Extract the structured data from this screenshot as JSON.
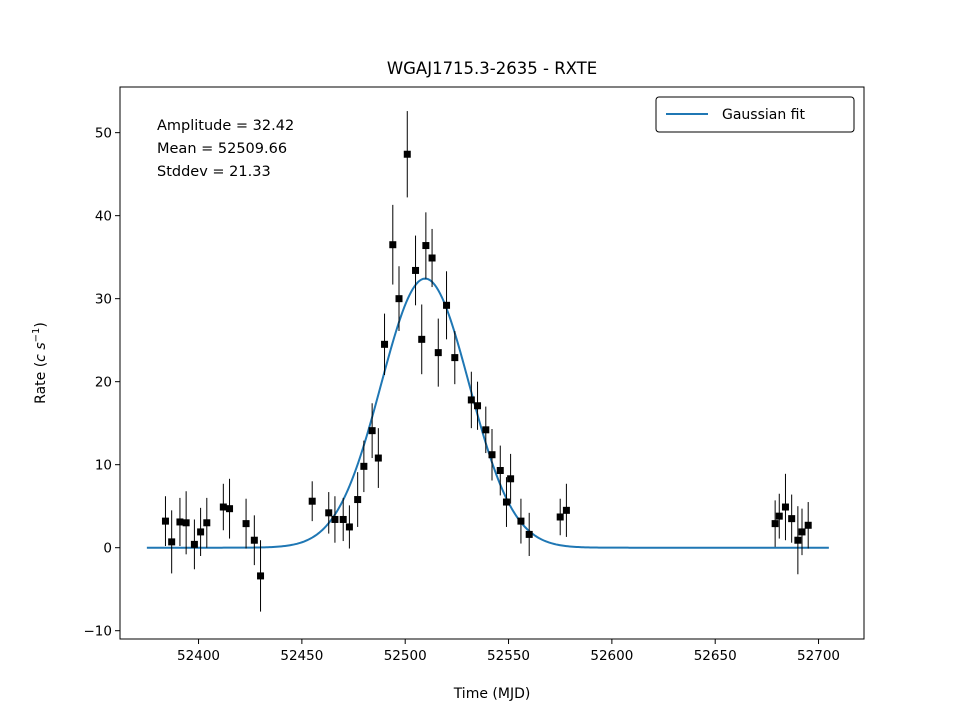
{
  "chart_data": {
    "type": "scatter",
    "title": "WGAJ1715.3-2635 - RXTE",
    "xlabel": "Time (MJD)",
    "ylabel_prefix": "Rate (",
    "ylabel_c": "c",
    "ylabel_s": "s",
    "ylabel_exp": "−1",
    "ylabel_suffix": ")",
    "xlim": [
      52362,
      52722
    ],
    "ylim": [
      -11,
      55.5
    ],
    "xticks": [
      52400,
      52450,
      52500,
      52550,
      52600,
      52650,
      52700
    ],
    "yticks": [
      -10,
      0,
      10,
      20,
      30,
      40,
      50
    ],
    "grid": false,
    "legend": {
      "position": "top-right",
      "entries": [
        "Gaussian fit"
      ]
    },
    "annotation_lines": [
      "Amplitude = 32.42",
      "Mean = 52509.66",
      "Stddev = 21.33"
    ],
    "fit": {
      "amplitude": 32.42,
      "mean": 52509.66,
      "stddev": 21.33,
      "x_range": [
        52375,
        52705
      ],
      "color": "#1f77b4"
    },
    "marker_color": "#000000",
    "points": [
      {
        "x": 52384,
        "y": 3.2,
        "err": 3.0
      },
      {
        "x": 52387,
        "y": 0.7,
        "err": 3.8
      },
      {
        "x": 52391,
        "y": 3.1,
        "err": 2.9
      },
      {
        "x": 52394,
        "y": 3.0,
        "err": 3.8
      },
      {
        "x": 52398,
        "y": 0.4,
        "err": 3.0
      },
      {
        "x": 52401,
        "y": 1.9,
        "err": 2.9
      },
      {
        "x": 52404,
        "y": 3.0,
        "err": 3.0
      },
      {
        "x": 52412,
        "y": 4.9,
        "err": 2.8
      },
      {
        "x": 52415,
        "y": 4.7,
        "err": 3.6
      },
      {
        "x": 52423,
        "y": 2.9,
        "err": 3.0
      },
      {
        "x": 52427,
        "y": 0.9,
        "err": 3.0
      },
      {
        "x": 52430,
        "y": -3.4,
        "err": 4.3
      },
      {
        "x": 52455,
        "y": 5.6,
        "err": 2.4
      },
      {
        "x": 52463,
        "y": 4.2,
        "err": 2.5
      },
      {
        "x": 52466,
        "y": 3.4,
        "err": 2.8
      },
      {
        "x": 52470,
        "y": 3.4,
        "err": 2.6
      },
      {
        "x": 52473,
        "y": 2.5,
        "err": 2.6
      },
      {
        "x": 52477,
        "y": 5.8,
        "err": 3.3
      },
      {
        "x": 52480,
        "y": 9.8,
        "err": 3.1
      },
      {
        "x": 52484,
        "y": 14.1,
        "err": 3.3
      },
      {
        "x": 52487,
        "y": 10.8,
        "err": 3.6
      },
      {
        "x": 52490,
        "y": 24.5,
        "err": 3.7
      },
      {
        "x": 52494,
        "y": 36.5,
        "err": 4.8
      },
      {
        "x": 52497,
        "y": 30.0,
        "err": 3.9
      },
      {
        "x": 52501,
        "y": 47.4,
        "err": 5.2
      },
      {
        "x": 52505,
        "y": 33.4,
        "err": 4.2
      },
      {
        "x": 52508,
        "y": 25.1,
        "err": 4.2
      },
      {
        "x": 52510,
        "y": 36.4,
        "err": 4.0
      },
      {
        "x": 52513,
        "y": 34.9,
        "err": 3.5
      },
      {
        "x": 52516,
        "y": 23.5,
        "err": 4.1
      },
      {
        "x": 52520,
        "y": 29.2,
        "err": 4.1
      },
      {
        "x": 52524,
        "y": 22.9,
        "err": 3.2
      },
      {
        "x": 52532,
        "y": 17.8,
        "err": 3.4
      },
      {
        "x": 52535,
        "y": 17.1,
        "err": 2.9
      },
      {
        "x": 52539,
        "y": 14.2,
        "err": 2.8
      },
      {
        "x": 52542,
        "y": 11.2,
        "err": 3.1
      },
      {
        "x": 52546,
        "y": 9.3,
        "err": 3.0
      },
      {
        "x": 52549,
        "y": 5.5,
        "err": 3.0
      },
      {
        "x": 52551,
        "y": 8.3,
        "err": 3.0
      },
      {
        "x": 52556,
        "y": 3.2,
        "err": 2.7
      },
      {
        "x": 52560,
        "y": 1.6,
        "err": 2.6
      },
      {
        "x": 52575,
        "y": 3.7,
        "err": 2.2
      },
      {
        "x": 52578,
        "y": 4.5,
        "err": 3.2
      },
      {
        "x": 52679,
        "y": 2.9,
        "err": 2.8
      },
      {
        "x": 52681,
        "y": 3.8,
        "err": 2.7
      },
      {
        "x": 52684,
        "y": 4.9,
        "err": 4.0
      },
      {
        "x": 52687,
        "y": 3.5,
        "err": 2.9
      },
      {
        "x": 52690,
        "y": 0.9,
        "err": 4.1
      },
      {
        "x": 52692,
        "y": 1.9,
        "err": 2.8
      },
      {
        "x": 52695,
        "y": 2.7,
        "err": 2.8
      }
    ]
  }
}
